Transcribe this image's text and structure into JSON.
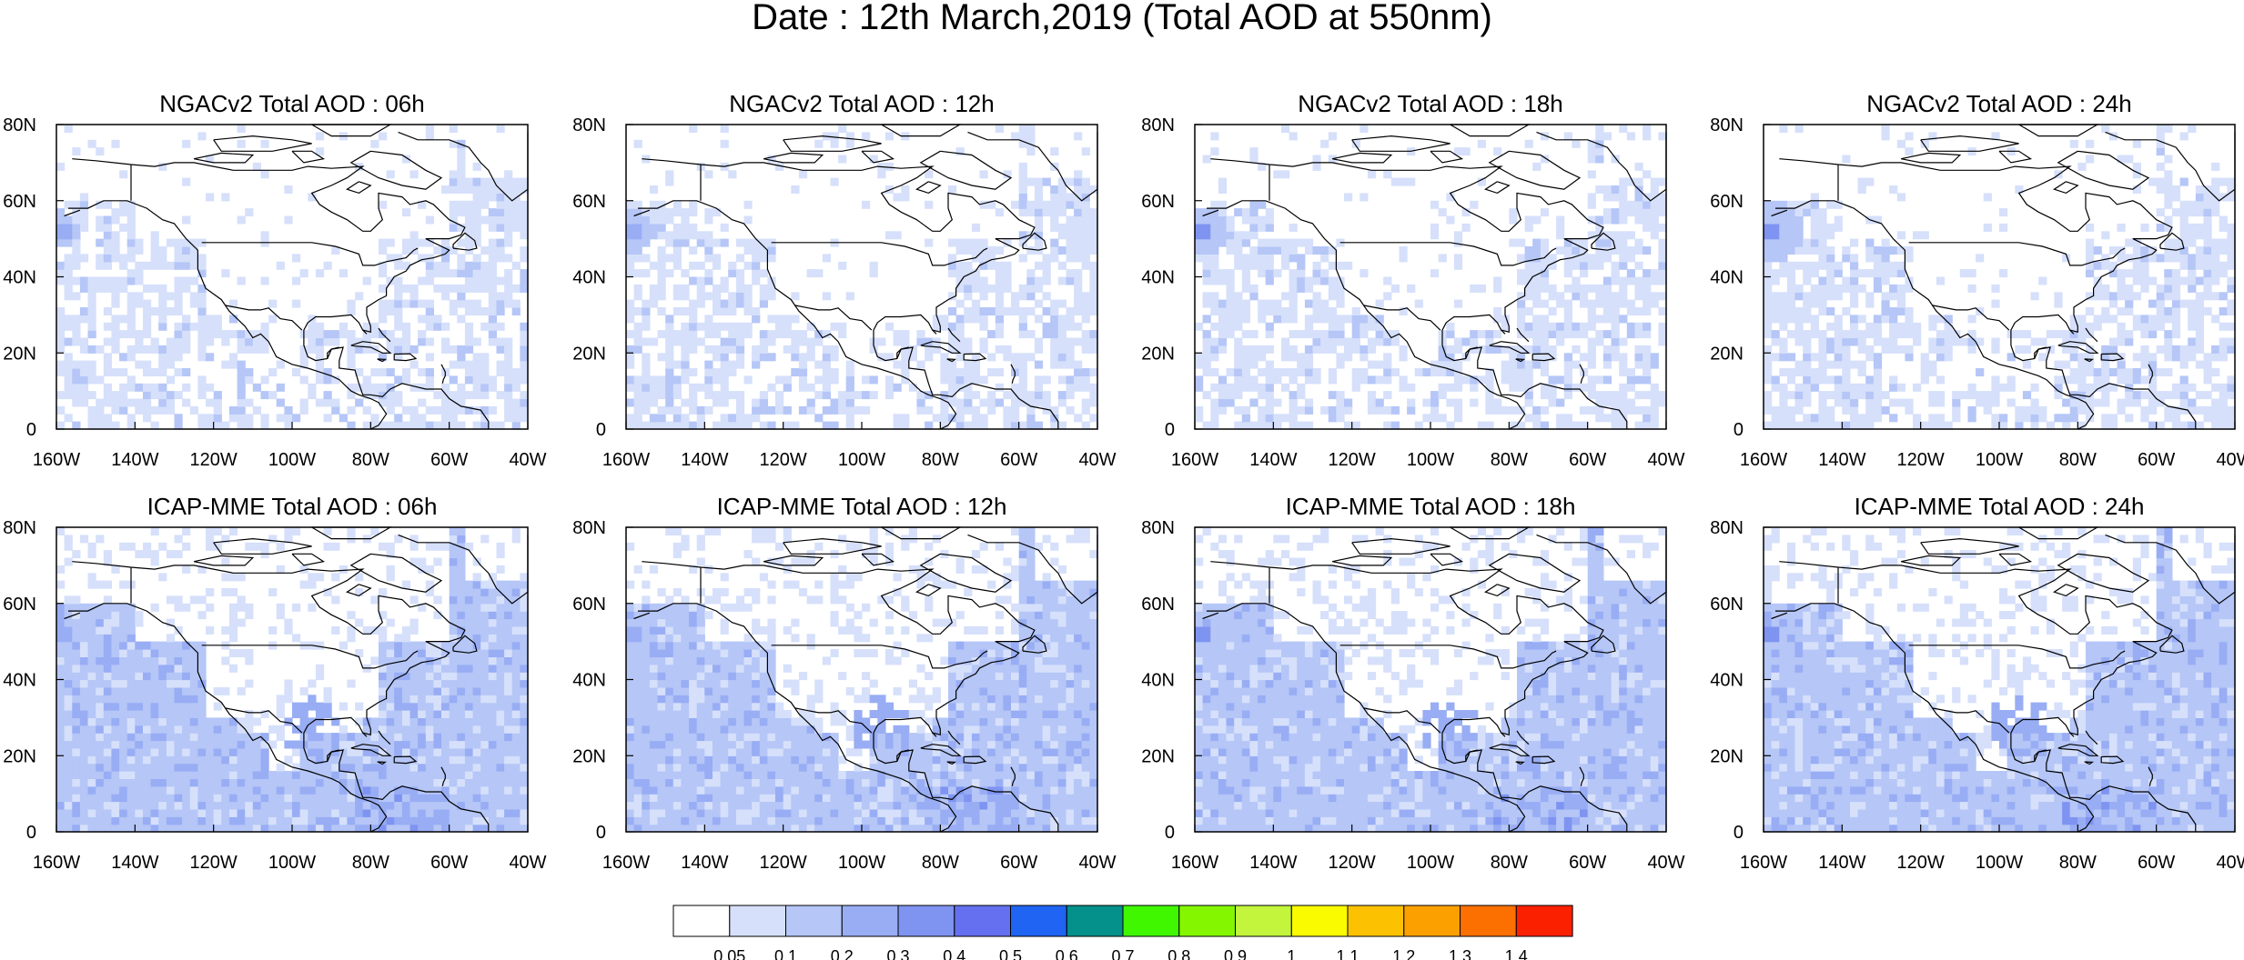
{
  "title": "Date : 12th March,2019 (Total AOD at 550nm)",
  "x_ticks": [
    "160W",
    "140W",
    "120W",
    "100W",
    "80W",
    "60W",
    "40W"
  ],
  "y_ticks": [
    "80N",
    "60N",
    "40N",
    "20N",
    "0"
  ],
  "lon_range": [
    -160,
    -40
  ],
  "lat_range": [
    0,
    80
  ],
  "panels": [
    {
      "title": "NGACv2 Total AOD : 06h",
      "model": "NGACv2",
      "hour": "06h"
    },
    {
      "title": "NGACv2 Total AOD : 12h",
      "model": "NGACv2",
      "hour": "12h"
    },
    {
      "title": "NGACv2 Total AOD : 18h",
      "model": "NGACv2",
      "hour": "18h"
    },
    {
      "title": "NGACv2 Total AOD : 24h",
      "model": "NGACv2",
      "hour": "24h"
    },
    {
      "title": "ICAP-MME Total AOD : 06h",
      "model": "ICAP-MME",
      "hour": "06h"
    },
    {
      "title": "ICAP-MME Total AOD : 12h",
      "model": "ICAP-MME",
      "hour": "12h"
    },
    {
      "title": "ICAP-MME Total AOD : 18h",
      "model": "ICAP-MME",
      "hour": "18h"
    },
    {
      "title": "ICAP-MME Total AOD : 24h",
      "model": "ICAP-MME",
      "hour": "24h"
    }
  ],
  "colorbar": {
    "labels": [
      "0.05",
      "0.1",
      "0.2",
      "0.3",
      "0.4",
      "0.5",
      "0.6",
      "0.7",
      "0.8",
      "0.9",
      "1",
      "1.1",
      "1.2",
      "1.3",
      "1.4"
    ],
    "colors": [
      "#ffffff",
      "#d6e0fb",
      "#b5c6f7",
      "#98adf4",
      "#7f94f1",
      "#6470ef",
      "#1f64f2",
      "#04918b",
      "#40f700",
      "#84f700",
      "#c2f53c",
      "#fbfb00",
      "#fcc100",
      "#fca000",
      "#fb7000",
      "#fb2000"
    ]
  }
}
